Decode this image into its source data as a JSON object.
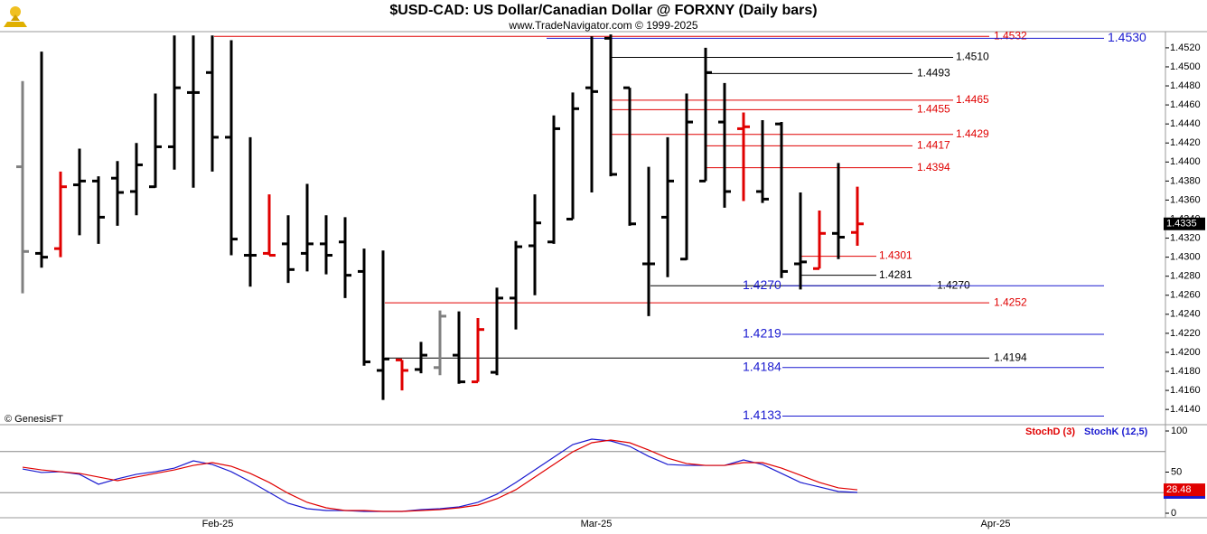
{
  "chart_data": [
    {
      "type": "ohlc",
      "title": "$USD-CAD:  US Dollar/Canadian Dollar @ FORXNY  (Daily bars)",
      "subtitle": "www.TradeNavigator.com © 1999-2025",
      "note": "© GenesisFT",
      "open": [
        1.4395,
        1.4304,
        1.4309,
        1.4376,
        1.438,
        1.4383,
        1.4369,
        1.4374,
        1.4416,
        1.4473,
        1.4494,
        1.4426,
        1.4302,
        1.4304,
        1.4314,
        1.4304,
        1.4314,
        1.4316,
        1.4285,
        1.4181,
        1.4192,
        1.4182,
        1.4184,
        1.4197,
        1.4169,
        1.4179,
        1.4257,
        1.4312,
        1.4316,
        1.434,
        1.4478,
        1.453,
        1.4478,
        1.4293,
        1.4342,
        1.4298,
        1.438,
        1.4442,
        1.4435,
        1.4369,
        1.444,
        1.4293,
        1.4288,
        1.4325,
        1.4326
      ],
      "high": [
        1.4485,
        1.4516,
        1.439,
        1.4414,
        1.4385,
        1.4401,
        1.442,
        1.4472,
        1.4533,
        1.4533,
        1.4533,
        1.4528,
        1.4426,
        1.4366,
        1.4344,
        1.4377,
        1.4344,
        1.4342,
        1.4309,
        1.4307,
        1.4192,
        1.4211,
        1.4244,
        1.4243,
        1.4236,
        1.4268,
        1.4317,
        1.4366,
        1.4449,
        1.4473,
        1.4532,
        1.4534,
        1.4478,
        1.4395,
        1.4426,
        1.4472,
        1.452,
        1.4483,
        1.4452,
        1.4444,
        1.4442,
        1.4368,
        1.4349,
        1.4399,
        1.4374
      ],
      "low": [
        1.4262,
        1.4289,
        1.43,
        1.4323,
        1.4314,
        1.4333,
        1.4344,
        1.4373,
        1.4392,
        1.4373,
        1.439,
        1.4302,
        1.4269,
        1.4302,
        1.4273,
        1.4285,
        1.4282,
        1.4257,
        1.4186,
        1.415,
        1.416,
        1.4178,
        1.4176,
        1.4167,
        1.4169,
        1.4176,
        1.4224,
        1.426,
        1.4314,
        1.434,
        1.4368,
        1.4385,
        1.4333,
        1.4238,
        1.4279,
        1.4297,
        1.438,
        1.4352,
        1.4359,
        1.4357,
        1.4278,
        1.4266,
        1.4288,
        1.4298,
        1.4312
      ],
      "close": [
        1.4306,
        1.43,
        1.4374,
        1.438,
        1.4342,
        1.4368,
        1.4397,
        1.4416,
        1.4478,
        1.4473,
        1.4426,
        1.4319,
        1.4302,
        1.4302,
        1.4287,
        1.4314,
        1.4302,
        1.4281,
        1.419,
        1.4193,
        1.4181,
        1.4197,
        1.4238,
        1.4169,
        1.4224,
        1.4257,
        1.4311,
        1.4336,
        1.4435,
        1.4456,
        1.4474,
        1.4387,
        1.4335,
        1.4293,
        1.438,
        1.4442,
        1.4494,
        1.4369,
        1.4437,
        1.4361,
        1.4285,
        1.4295,
        1.4325,
        1.4321,
        1.4335
      ],
      "colors": [
        "#808080",
        "#000000",
        "#e00000",
        "#000000",
        "#000000",
        "#000000",
        "#000000",
        "#000000",
        "#000000",
        "#000000",
        "#000000",
        "#000000",
        "#000000",
        "#e00000",
        "#000000",
        "#000000",
        "#000000",
        "#000000",
        "#000000",
        "#000000",
        "#e00000",
        "#000000",
        "#808080",
        "#000000",
        "#e00000",
        "#000000",
        "#000000",
        "#000000",
        "#000000",
        "#000000",
        "#000000",
        "#000000",
        "#000000",
        "#000000",
        "#000000",
        "#000000",
        "#000000",
        "#000000",
        "#e00000",
        "#000000",
        "#000000",
        "#000000",
        "#e00000",
        "#000000",
        "#e00000"
      ],
      "ylim": [
        1.4124,
        1.4537
      ],
      "yticks": [
        {
          "value": 1.414,
          "label": "1.4140"
        },
        {
          "value": 1.416,
          "label": "1.4160"
        },
        {
          "value": 1.418,
          "label": "1.4180"
        },
        {
          "value": 1.42,
          "label": "1.4200"
        },
        {
          "value": 1.422,
          "label": "1.4220"
        },
        {
          "value": 1.424,
          "label": "1.4240"
        },
        {
          "value": 1.426,
          "label": "1.4260"
        },
        {
          "value": 1.428,
          "label": "1.4280"
        },
        {
          "value": 1.43,
          "label": "1.4300"
        },
        {
          "value": 1.432,
          "label": "1.4320"
        },
        {
          "value": 1.434,
          "label": "1.4340"
        },
        {
          "value": 1.436,
          "label": "1.4360"
        },
        {
          "value": 1.438,
          "label": "1.4380"
        },
        {
          "value": 1.44,
          "label": "1.4400"
        },
        {
          "value": 1.442,
          "label": "1.4420"
        },
        {
          "value": 1.444,
          "label": "1.4440"
        },
        {
          "value": 1.446,
          "label": "1.4460"
        },
        {
          "value": 1.448,
          "label": "1.4480"
        },
        {
          "value": 1.45,
          "label": "1.4500"
        },
        {
          "value": 1.452,
          "label": "1.4520"
        }
      ],
      "levels": [
        {
          "value": 1.4532,
          "label": "1.4532",
          "color": "#e00000"
        },
        {
          "value": 1.453,
          "label": "1.4530",
          "color": "#1a1ad0"
        },
        {
          "value": 1.451,
          "label": "1.4510",
          "color": "#000000"
        },
        {
          "value": 1.4493,
          "label": "1.4493",
          "color": "#000000"
        },
        {
          "value": 1.4465,
          "label": "1.4465",
          "color": "#e00000"
        },
        {
          "value": 1.4455,
          "label": "1.4455",
          "color": "#e00000"
        },
        {
          "value": 1.4429,
          "label": "1.4429",
          "color": "#e00000"
        },
        {
          "value": 1.4417,
          "label": "1.4417",
          "color": "#e00000"
        },
        {
          "value": 1.4394,
          "label": "1.4394",
          "color": "#e00000"
        },
        {
          "value": 1.4301,
          "label": "1.4301",
          "color": "#e00000"
        },
        {
          "value": 1.4281,
          "label": "1.4281",
          "color": "#000000"
        },
        {
          "value": 1.427,
          "label": "1.4270",
          "color": "#000000"
        },
        {
          "value": 1.427,
          "label": "1.4270",
          "color": "#1a1ad0"
        },
        {
          "value": 1.4252,
          "label": "1.4252",
          "color": "#e00000"
        },
        {
          "value": 1.4219,
          "label": "1.4219",
          "color": "#1a1ad0"
        },
        {
          "value": 1.4194,
          "label": "1.4194",
          "color": "#000000"
        },
        {
          "value": 1.4184,
          "label": "1.4184",
          "color": "#1a1ad0"
        },
        {
          "value": 1.4133,
          "label": "1.4133",
          "color": "#1a1ad0"
        }
      ]
    },
    {
      "type": "line",
      "series": [
        {
          "name": "StochD (3)",
          "color": "#e00000",
          "values": [
            56.0,
            52.7,
            50.5,
            48.4,
            44.0,
            39.6,
            44.0,
            48.4,
            52.7,
            58.2,
            61.5,
            57.1,
            48.4,
            37.4,
            24.2,
            13.2,
            6.6,
            3.3,
            3.3,
            2.2,
            2.2,
            3.3,
            4.4,
            6.6,
            9.9,
            17.6,
            28.6,
            44.0,
            59.3,
            74.7,
            85.7,
            89.0,
            85.7,
            76.9,
            67.0,
            60.4,
            58.2,
            58.2,
            61.5,
            61.5,
            54.9,
            46.2,
            37.4,
            30.8,
            28.48
          ]
        },
        {
          "name": "StochK (12,5)",
          "color": "#1a1ad0",
          "values": [
            53.8,
            49.5,
            50.5,
            47.3,
            35.2,
            41.8,
            47.3,
            50.5,
            54.9,
            63.7,
            59.3,
            50.5,
            38.5,
            25.3,
            12.1,
            5.5,
            3.3,
            3.3,
            2.2,
            2.2,
            2.2,
            4.4,
            5.5,
            7.7,
            13.2,
            23.1,
            37.4,
            52.7,
            68.1,
            83.5,
            90.1,
            87.9,
            81.3,
            69.2,
            59.3,
            58.2,
            58.2,
            58.2,
            64.8,
            59.3,
            48.4,
            37.4,
            31.9,
            26.4,
            25.3
          ]
        }
      ],
      "ylim": [
        -5.5,
        107.7
      ],
      "yticks": [
        0,
        50,
        100
      ],
      "levels": [
        25,
        75
      ],
      "xtick_labels": [
        "Feb-25",
        "Mar-25",
        "Apr-25"
      ]
    }
  ]
}
